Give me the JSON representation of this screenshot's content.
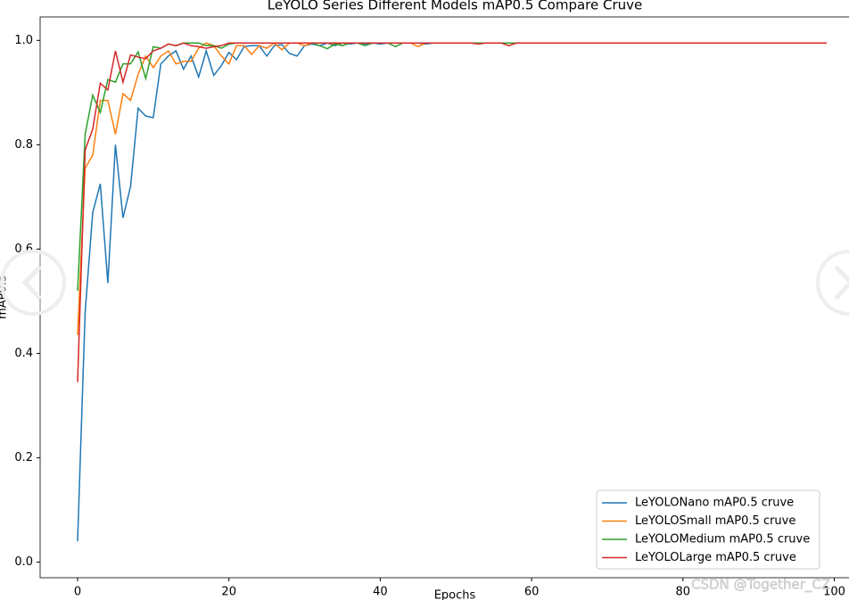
{
  "chart_data": {
    "type": "line",
    "title": "LeYOLO Series Different Models mAP0.5 Compare Cruve",
    "x_label": "Epochs",
    "y_label": "mAP0.5",
    "watermark": "CSDN @Together_CZ",
    "x": [
      0,
      1,
      2,
      3,
      4,
      5,
      6,
      7,
      8,
      9,
      10,
      11,
      12,
      13,
      14,
      15,
      16,
      17,
      18,
      19,
      20,
      21,
      22,
      23,
      24,
      25,
      26,
      27,
      28,
      29,
      30,
      31,
      32,
      33,
      34,
      35,
      36,
      37,
      38,
      39,
      40,
      41,
      42,
      43,
      44,
      45,
      46,
      47,
      48,
      49,
      50,
      51,
      52,
      53,
      54,
      55,
      56,
      57,
      58,
      59,
      60,
      61,
      62,
      63,
      64,
      65,
      66,
      67,
      68,
      69,
      70,
      71,
      72,
      73,
      74,
      75,
      76,
      77,
      78,
      79,
      80,
      81,
      82,
      83,
      84,
      85,
      86,
      87,
      88,
      89,
      90,
      91,
      92,
      93,
      94,
      95,
      96,
      97,
      98,
      99
    ],
    "series": [
      {
        "name": "LeYOLONano mAP0.5 cruve",
        "color": "#1f77b4",
        "values": [
          0.04,
          0.48,
          0.67,
          0.725,
          0.535,
          0.8,
          0.66,
          0.72,
          0.87,
          0.855,
          0.852,
          0.955,
          0.97,
          0.98,
          0.945,
          0.97,
          0.93,
          0.98,
          0.933,
          0.952,
          0.977,
          0.963,
          0.988,
          0.99,
          0.99,
          0.97,
          0.99,
          0.992,
          0.975,
          0.97,
          0.99,
          0.993,
          0.99,
          0.995,
          0.99,
          0.995,
          0.993,
          0.995,
          0.993,
          0.995,
          0.993,
          0.995,
          0.995,
          0.995,
          0.995,
          0.995,
          0.993,
          0.995,
          0.995,
          0.995,
          0.995,
          0.995,
          0.995,
          0.995,
          0.995,
          0.995,
          0.995,
          0.995,
          0.995,
          0.995,
          0.995,
          0.995,
          0.995,
          0.995,
          0.995,
          0.995,
          0.995,
          0.995,
          0.995,
          0.995,
          0.995,
          0.995,
          0.995,
          0.995,
          0.995,
          0.995,
          0.995,
          0.995,
          0.995,
          0.995,
          0.995,
          0.995,
          0.995,
          0.995,
          0.995,
          0.995,
          0.995,
          0.995,
          0.995,
          0.995,
          0.995,
          0.995,
          0.995,
          0.995,
          0.995,
          0.995,
          0.995,
          0.995,
          0.995,
          0.995
        ]
      },
      {
        "name": "LeYOLOSmall mAP0.5 cruve",
        "color": "#ff7f0e",
        "values": [
          0.435,
          0.755,
          0.78,
          0.885,
          0.885,
          0.82,
          0.898,
          0.885,
          0.935,
          0.97,
          0.948,
          0.97,
          0.98,
          0.955,
          0.96,
          0.96,
          0.985,
          0.995,
          0.99,
          0.97,
          0.955,
          0.99,
          0.99,
          0.973,
          0.99,
          0.985,
          0.995,
          0.982,
          0.995,
          0.995,
          0.99,
          0.995,
          0.995,
          0.995,
          0.993,
          0.995,
          0.995,
          0.995,
          0.995,
          0.995,
          0.995,
          0.995,
          0.995,
          0.995,
          0.995,
          0.988,
          0.995,
          0.995,
          0.995,
          0.995,
          0.995,
          0.995,
          0.995,
          0.995,
          0.995,
          0.995,
          0.995,
          0.995,
          0.995,
          0.995,
          0.995,
          0.995,
          0.995,
          0.995,
          0.995,
          0.995,
          0.995,
          0.995,
          0.995,
          0.995,
          0.995,
          0.995,
          0.995,
          0.995,
          0.995,
          0.995,
          0.995,
          0.995,
          0.995,
          0.995,
          0.995,
          0.995,
          0.995,
          0.995,
          0.995,
          0.995,
          0.995,
          0.995,
          0.995,
          0.995,
          0.995,
          0.995,
          0.995,
          0.995,
          0.995,
          0.995,
          0.995,
          0.995,
          0.995,
          0.995
        ]
      },
      {
        "name": "LeYOLOMedium mAP0.5 cruve",
        "color": "#2ca02c",
        "values": [
          0.52,
          0.82,
          0.895,
          0.862,
          0.925,
          0.92,
          0.955,
          0.955,
          0.978,
          0.927,
          0.988,
          0.985,
          0.993,
          0.99,
          0.995,
          0.995,
          0.995,
          0.99,
          0.99,
          0.985,
          0.993,
          0.995,
          0.995,
          0.995,
          0.995,
          0.995,
          0.995,
          0.995,
          0.995,
          0.995,
          0.995,
          0.995,
          0.99,
          0.984,
          0.993,
          0.99,
          0.995,
          0.995,
          0.99,
          0.995,
          0.995,
          0.995,
          0.988,
          0.995,
          0.995,
          0.995,
          0.995,
          0.995,
          0.995,
          0.995,
          0.995,
          0.995,
          0.995,
          0.995,
          0.995,
          0.995,
          0.995,
          0.995,
          0.995,
          0.995,
          0.995,
          0.995,
          0.995,
          0.995,
          0.995,
          0.995,
          0.995,
          0.995,
          0.995,
          0.995,
          0.995,
          0.995,
          0.995,
          0.995,
          0.995,
          0.995,
          0.995,
          0.995,
          0.995,
          0.995,
          0.995,
          0.995,
          0.995,
          0.995,
          0.995,
          0.995,
          0.995,
          0.995,
          0.995,
          0.995,
          0.995,
          0.995,
          0.995,
          0.995,
          0.995,
          0.995,
          0.995,
          0.995,
          0.995,
          0.995
        ]
      },
      {
        "name": "LeYOLOLarge mAP0.5 cruve",
        "color": "#d62728",
        "values": [
          0.345,
          0.79,
          0.83,
          0.918,
          0.905,
          0.98,
          0.92,
          0.972,
          0.968,
          0.965,
          0.98,
          0.985,
          0.993,
          0.99,
          0.995,
          0.99,
          0.988,
          0.985,
          0.988,
          0.99,
          0.995,
          0.995,
          0.995,
          0.995,
          0.995,
          0.995,
          0.995,
          0.995,
          0.995,
          0.995,
          0.995,
          0.995,
          0.995,
          0.995,
          0.995,
          0.995,
          0.995,
          0.995,
          0.995,
          0.995,
          0.995,
          0.995,
          0.995,
          0.995,
          0.995,
          0.995,
          0.995,
          0.995,
          0.995,
          0.995,
          0.995,
          0.995,
          0.995,
          0.993,
          0.995,
          0.995,
          0.995,
          0.99,
          0.995,
          0.995,
          0.995,
          0.995,
          0.995,
          0.995,
          0.995,
          0.995,
          0.995,
          0.995,
          0.995,
          0.995,
          0.995,
          0.995,
          0.995,
          0.995,
          0.995,
          0.995,
          0.995,
          0.995,
          0.995,
          0.995,
          0.995,
          0.995,
          0.995,
          0.995,
          0.995,
          0.995,
          0.995,
          0.995,
          0.995,
          0.995,
          0.995,
          0.995,
          0.995,
          0.995,
          0.995,
          0.995,
          0.995,
          0.995,
          0.995,
          0.995
        ]
      }
    ],
    "xlim": [
      -4.95,
      103.95
    ],
    "ylim": [
      -0.03,
      1.045
    ],
    "xticks": [
      0,
      20,
      40,
      60,
      80,
      100
    ],
    "yticks": [
      {
        "value": 0,
        "label": "0.0"
      },
      0.2,
      0.4,
      0.6,
      0.8,
      {
        "value": 1,
        "label": "1.0"
      }
    ],
    "legend": "lower right"
  }
}
